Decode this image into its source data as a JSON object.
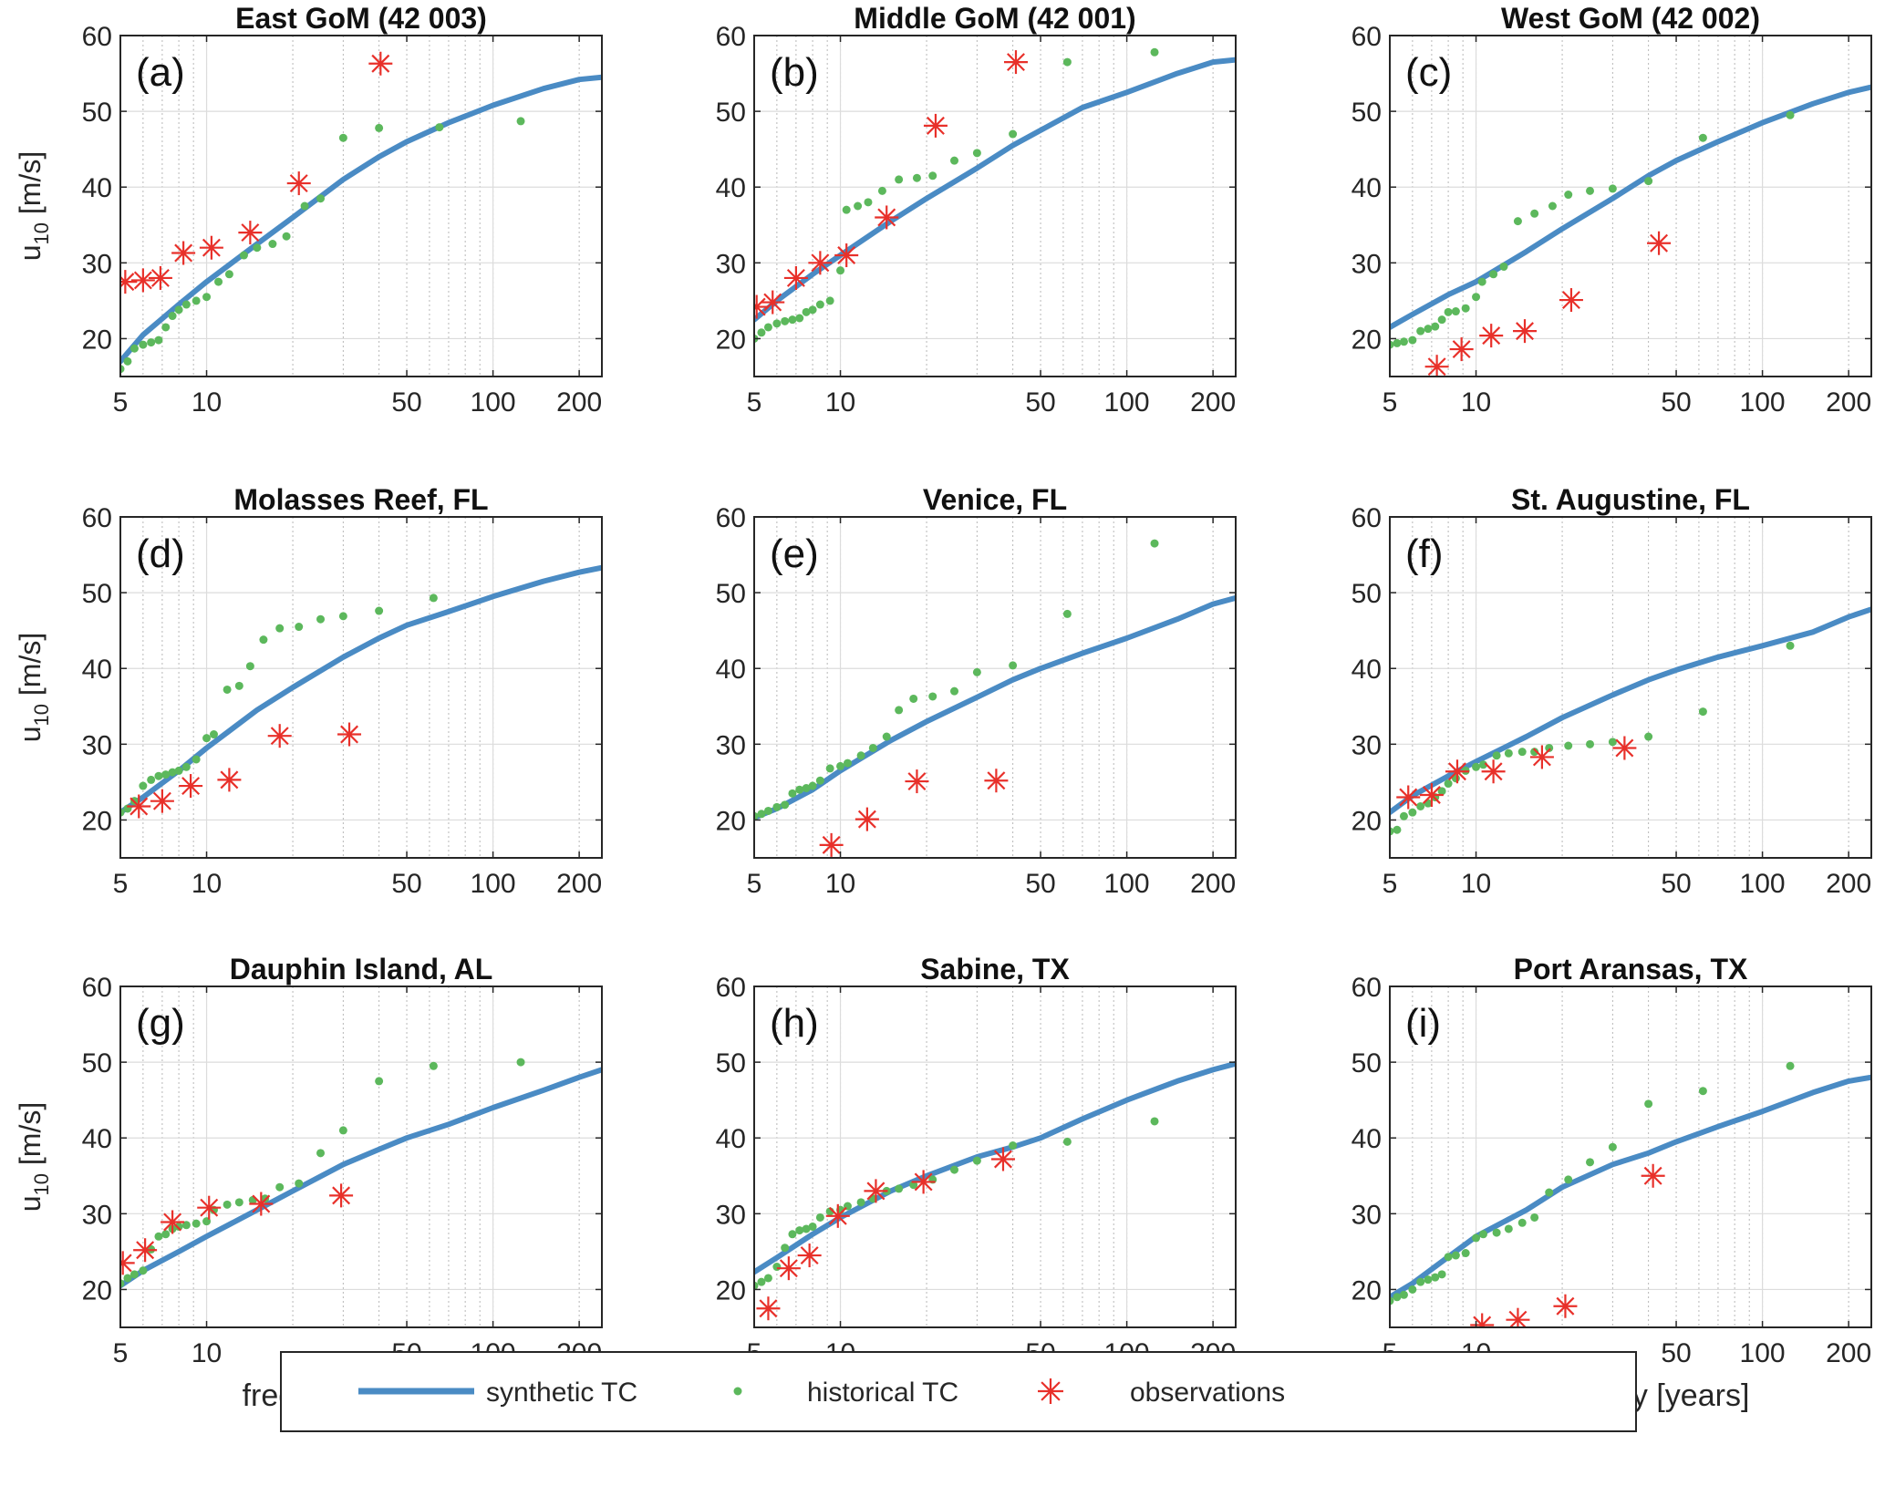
{
  "legend": {
    "placement": "bottom-center",
    "items": [
      {
        "label": "synthetic TC",
        "marker": "line"
      },
      {
        "label": "historical TC",
        "marker": "dot"
      },
      {
        "label": "observations",
        "marker": "asterisk"
      }
    ]
  },
  "colors": {
    "synthetic": "#4a8bc4",
    "historical": "#5cb85c",
    "observations": "#e8302a",
    "grid": "#dcdcdc",
    "minor_grid": "#b8b8b8",
    "axes": "#262626"
  },
  "y_axis_label": {
    "main": "u",
    "sub": "10",
    "unit": " [m/s]"
  },
  "x_axis_label": "frequency [years]",
  "chart_data": [
    {
      "type": "line",
      "title": "East GoM (42 003)",
      "panel_label": "(a)",
      "xscale": "log",
      "xlim": [
        5,
        240
      ],
      "ylim": [
        15,
        60
      ],
      "xticks": [
        5,
        10,
        50,
        100,
        200
      ],
      "yticks": [
        20,
        30,
        40,
        50,
        60
      ],
      "grid": true,
      "synthetic": {
        "x": [
          5,
          6,
          8,
          10,
          15,
          20,
          30,
          40,
          50,
          70,
          100,
          150,
          200,
          240
        ],
        "y": [
          17,
          20.5,
          24.5,
          27.5,
          32.5,
          36,
          41,
          44,
          46,
          48.5,
          50.8,
          53,
          54.2,
          54.5
        ]
      },
      "historical": {
        "x": [
          5,
          5.3,
          5.6,
          6,
          6.4,
          6.8,
          7.2,
          7.6,
          8,
          8.5,
          9.2,
          10,
          11,
          12,
          13.5,
          15,
          17,
          19,
          22,
          25,
          30,
          40,
          65,
          125
        ],
        "y": [
          16,
          17,
          18.7,
          19.2,
          19.5,
          19.8,
          21.5,
          23,
          23.8,
          24.5,
          25,
          25.5,
          27.5,
          28.5,
          31,
          32,
          32.5,
          33.5,
          37.5,
          38.5,
          46.5,
          47.8,
          47.9,
          48.7
        ]
      },
      "observations": {
        "x": [
          5.2,
          6,
          6.9,
          8.3,
          10.4,
          14.2,
          21,
          40.5
        ],
        "y": [
          27.5,
          27.7,
          28,
          31.3,
          32,
          34,
          40.5,
          56.3
        ]
      }
    },
    {
      "type": "line",
      "title": "Middle GoM (42 001)",
      "panel_label": "(b)",
      "xscale": "log",
      "xlim": [
        5,
        240
      ],
      "ylim": [
        15,
        60
      ],
      "xticks": [
        5,
        10,
        50,
        100,
        200
      ],
      "yticks": [
        20,
        30,
        40,
        50,
        60
      ],
      "grid": true,
      "synthetic": {
        "x": [
          5,
          6,
          8,
          10,
          15,
          20,
          30,
          40,
          50,
          70,
          100,
          150,
          200,
          240
        ],
        "y": [
          22.5,
          25,
          28.5,
          31,
          35.5,
          38.5,
          42.5,
          45.5,
          47.5,
          50.5,
          52.5,
          55,
          56.5,
          56.8
        ]
      },
      "historical": {
        "x": [
          5,
          5.3,
          5.6,
          6,
          6.4,
          6.8,
          7.2,
          7.6,
          8,
          8.5,
          9.2,
          10,
          10.5,
          11.5,
          12.5,
          14,
          16,
          18.5,
          21,
          25,
          30,
          40,
          62,
          125
        ],
        "y": [
          20,
          20.8,
          21.5,
          22,
          22.3,
          22.5,
          22.7,
          23.5,
          23.8,
          24.5,
          25,
          29,
          37,
          37.5,
          38,
          39.5,
          41,
          41.2,
          41.5,
          43.5,
          44.5,
          47,
          56.5,
          57.8
        ]
      },
      "observations": {
        "x": [
          5.1,
          5.8,
          7,
          8.5,
          10.5,
          14.5,
          21.5,
          41
        ],
        "y": [
          24.2,
          24.8,
          28,
          30,
          31,
          36,
          48.1,
          56.5
        ]
      }
    },
    {
      "type": "line",
      "title": "West GoM (42 002)",
      "panel_label": "(c)",
      "xscale": "log",
      "xlim": [
        5,
        240
      ],
      "ylim": [
        15,
        60
      ],
      "xticks": [
        5,
        10,
        50,
        100,
        200
      ],
      "yticks": [
        20,
        30,
        40,
        50,
        60
      ],
      "grid": true,
      "synthetic": {
        "x": [
          5,
          6,
          8,
          10,
          15,
          20,
          30,
          40,
          50,
          70,
          100,
          150,
          200,
          240
        ],
        "y": [
          21.5,
          23.2,
          25.8,
          27.5,
          31.5,
          34.5,
          38.5,
          41.5,
          43.5,
          46,
          48.5,
          51,
          52.5,
          53.2
        ]
      },
      "historical": {
        "x": [
          5,
          5.3,
          5.6,
          6,
          6.4,
          6.8,
          7.2,
          7.6,
          8,
          8.5,
          9.2,
          10,
          10.5,
          11.5,
          12.5,
          14,
          16,
          18.5,
          21,
          25,
          30,
          40,
          62,
          125
        ],
        "y": [
          19.2,
          19.4,
          19.6,
          19.8,
          21,
          21.3,
          21.6,
          22.5,
          23.5,
          23.6,
          24,
          25.5,
          27.5,
          28.5,
          29.5,
          35.5,
          36.5,
          37.5,
          39,
          39.5,
          39.8,
          40.8,
          46.5,
          49.5
        ]
      },
      "observations": {
        "x": [
          7.3,
          8.9,
          11.3,
          14.8,
          21.5,
          43.5
        ],
        "y": [
          16.3,
          18.6,
          20.4,
          21,
          25.1,
          32.6
        ]
      }
    },
    {
      "type": "line",
      "title": "Molasses Reef, FL",
      "panel_label": "(d)",
      "xscale": "log",
      "xlim": [
        5,
        240
      ],
      "ylim": [
        15,
        60
      ],
      "xticks": [
        5,
        10,
        50,
        100,
        200
      ],
      "yticks": [
        20,
        30,
        40,
        50,
        60
      ],
      "grid": true,
      "synthetic": {
        "x": [
          5,
          6,
          8,
          10,
          15,
          20,
          30,
          40,
          50,
          70,
          100,
          150,
          200,
          240
        ],
        "y": [
          21,
          23,
          26.5,
          29.5,
          34.5,
          37.5,
          41.5,
          44,
          45.7,
          47.5,
          49.5,
          51.5,
          52.7,
          53.3
        ]
      },
      "historical": {
        "x": [
          5,
          5.3,
          5.6,
          6,
          6.4,
          6.8,
          7.2,
          7.6,
          8,
          8.5,
          9.2,
          10,
          10.6,
          11.8,
          13,
          14.2,
          15.8,
          18,
          21,
          25,
          30,
          40,
          62
        ],
        "y": [
          21,
          21.5,
          22.5,
          24.5,
          25.3,
          25.8,
          26,
          26.3,
          26.5,
          27,
          28,
          30.8,
          31.3,
          37.2,
          37.7,
          40.3,
          43.8,
          45.3,
          45.5,
          46.5,
          46.9,
          47.6,
          49.3
        ]
      },
      "observations": {
        "x": [
          5.8,
          7,
          8.8,
          12,
          18,
          31.5
        ],
        "y": [
          21.8,
          22.5,
          24.5,
          25.3,
          31.1,
          31.3
        ]
      }
    },
    {
      "type": "line",
      "title": "Venice, FL",
      "panel_label": "(e)",
      "xscale": "log",
      "xlim": [
        5,
        240
      ],
      "ylim": [
        15,
        60
      ],
      "xticks": [
        5,
        10,
        50,
        100,
        200
      ],
      "yticks": [
        20,
        30,
        40,
        50,
        60
      ],
      "grid": true,
      "synthetic": {
        "x": [
          5,
          6,
          8,
          10,
          15,
          20,
          30,
          40,
          50,
          70,
          100,
          150,
          200,
          240
        ],
        "y": [
          20.3,
          21.5,
          24,
          26.5,
          30.5,
          33,
          36.2,
          38.5,
          40,
          42,
          44,
          46.5,
          48.5,
          49.3
        ]
      },
      "historical": {
        "x": [
          5,
          5.3,
          5.6,
          6,
          6.4,
          6.8,
          7.2,
          7.6,
          8,
          8.5,
          9.2,
          10,
          10.6,
          11.8,
          13,
          14.5,
          16,
          18,
          21,
          25,
          30,
          40,
          62,
          125
        ],
        "y": [
          20.5,
          20.8,
          21.2,
          21.7,
          22,
          23.5,
          24,
          24.2,
          24.5,
          25.2,
          26.8,
          27.1,
          27.5,
          28.5,
          29.5,
          31,
          34.5,
          36,
          36.3,
          37,
          39.5,
          40.4,
          47.2,
          56.5
        ]
      },
      "observations": {
        "x": [
          9.3,
          12.4,
          18.5,
          35
        ],
        "y": [
          16.7,
          20.1,
          25.1,
          25.2
        ]
      }
    },
    {
      "type": "line",
      "title": "St. Augustine, FL",
      "panel_label": "(f)",
      "xscale": "log",
      "xlim": [
        5,
        240
      ],
      "ylim": [
        15,
        60
      ],
      "xticks": [
        5,
        10,
        50,
        100,
        200
      ],
      "yticks": [
        20,
        30,
        40,
        50,
        60
      ],
      "grid": true,
      "synthetic": {
        "x": [
          5,
          6,
          8,
          10,
          15,
          20,
          30,
          40,
          50,
          70,
          100,
          150,
          200,
          240
        ],
        "y": [
          21,
          23.2,
          25.8,
          27.7,
          31,
          33.5,
          36.5,
          38.5,
          39.8,
          41.5,
          43,
          44.8,
          46.8,
          47.8
        ]
      },
      "historical": {
        "x": [
          5,
          5.3,
          5.6,
          6,
          6.4,
          6.8,
          7.2,
          7.6,
          8,
          8.5,
          9.2,
          10,
          10.6,
          11.8,
          13,
          14.5,
          16,
          18,
          21,
          25,
          30,
          40,
          62,
          125
        ],
        "y": [
          18.5,
          18.7,
          20.5,
          21,
          21.8,
          22.2,
          23,
          23.8,
          24.8,
          25.5,
          26.5,
          27,
          27.3,
          28.5,
          28.8,
          29,
          29,
          29.5,
          29.8,
          30,
          30.3,
          31,
          34.3,
          43
        ]
      },
      "observations": {
        "x": [
          5.8,
          7,
          8.6,
          11.5,
          17,
          33
        ],
        "y": [
          23,
          23.3,
          26.4,
          26.4,
          28.3,
          29.5
        ]
      }
    },
    {
      "type": "line",
      "title": "Dauphin Island, AL",
      "panel_label": "(g)",
      "xscale": "log",
      "xlim": [
        5,
        240
      ],
      "ylim": [
        15,
        60
      ],
      "xticks": [
        5,
        10,
        50,
        100,
        200
      ],
      "yticks": [
        20,
        30,
        40,
        50,
        60
      ],
      "grid": true,
      "synthetic": {
        "x": [
          5,
          6,
          8,
          10,
          15,
          20,
          30,
          40,
          50,
          70,
          100,
          150,
          200,
          240
        ],
        "y": [
          20.5,
          22.5,
          25,
          27,
          30.5,
          33,
          36.5,
          38.5,
          40,
          41.8,
          44,
          46.3,
          48,
          49
        ]
      },
      "historical": {
        "x": [
          5,
          5.3,
          5.6,
          6,
          6.4,
          6.8,
          7.2,
          7.6,
          8,
          8.5,
          9.2,
          10,
          10.6,
          11.8,
          13,
          14.5,
          16,
          18,
          21,
          25,
          30,
          40,
          62,
          125
        ],
        "y": [
          20.8,
          21.5,
          22,
          22.5,
          25.3,
          27,
          27.3,
          28,
          28.3,
          28.5,
          28.7,
          29,
          30.5,
          31.2,
          31.5,
          31.8,
          32,
          33.5,
          34,
          38,
          41,
          47.5,
          49.5,
          50
        ]
      },
      "observations": {
        "x": [
          5.1,
          6.1,
          7.6,
          10.2,
          15.5,
          29.5
        ],
        "y": [
          23.5,
          25.2,
          28.9,
          30.8,
          31.3,
          32.4
        ]
      }
    },
    {
      "type": "line",
      "title": "Sabine, TX",
      "panel_label": "(h)",
      "xscale": "log",
      "xlim": [
        5,
        240
      ],
      "ylim": [
        15,
        60
      ],
      "xticks": [
        5,
        10,
        50,
        100,
        200
      ],
      "yticks": [
        20,
        30,
        40,
        50,
        60
      ],
      "grid": true,
      "synthetic": {
        "x": [
          5,
          6,
          8,
          10,
          15,
          20,
          30,
          40,
          50,
          70,
          100,
          150,
          200,
          240
        ],
        "y": [
          22.3,
          24.2,
          27.3,
          29.5,
          33,
          35,
          37.5,
          38.8,
          40,
          42.5,
          45,
          47.5,
          49,
          49.8
        ]
      },
      "historical": {
        "x": [
          5,
          5.3,
          5.6,
          6,
          6.4,
          6.8,
          7.2,
          7.6,
          8,
          8.5,
          9.2,
          10,
          10.6,
          11.8,
          13,
          14.5,
          16,
          18,
          21,
          25,
          30,
          40,
          62,
          125
        ],
        "y": [
          20.5,
          21,
          21.5,
          23,
          25.5,
          27.3,
          27.8,
          28,
          28.3,
          29.5,
          30.3,
          30.5,
          31,
          31.5,
          32,
          33,
          33.3,
          33.8,
          34.5,
          35.8,
          37,
          39,
          39.5,
          42.2
        ]
      },
      "observations": {
        "x": [
          5.6,
          6.6,
          7.8,
          9.8,
          13.3,
          19.5,
          37
        ],
        "y": [
          17.5,
          22.8,
          24.5,
          29.7,
          33,
          34.2,
          37.2
        ]
      }
    },
    {
      "type": "line",
      "title": "Port Aransas, TX",
      "panel_label": "(i)",
      "xscale": "log",
      "xlim": [
        5,
        240
      ],
      "ylim": [
        15,
        60
      ],
      "xticks": [
        5,
        10,
        50,
        100,
        200
      ],
      "yticks": [
        20,
        30,
        40,
        50,
        60
      ],
      "grid": true,
      "synthetic": {
        "x": [
          5,
          6,
          8,
          10,
          15,
          20,
          30,
          40,
          50,
          70,
          100,
          150,
          200,
          240
        ],
        "y": [
          19,
          20.8,
          24.3,
          27,
          30.5,
          33.5,
          36.5,
          38,
          39.5,
          41.5,
          43.5,
          46,
          47.5,
          48
        ]
      },
      "historical": {
        "x": [
          5,
          5.3,
          5.6,
          6,
          6.4,
          6.8,
          7.2,
          7.6,
          8,
          8.5,
          9.2,
          10,
          10.6,
          11.8,
          13,
          14.5,
          16,
          18,
          21,
          25,
          30,
          40,
          62,
          125
        ],
        "y": [
          18.5,
          19,
          19.3,
          20,
          21,
          21.3,
          21.6,
          22,
          24.3,
          24.5,
          24.8,
          26.8,
          27.3,
          27.5,
          28,
          28.8,
          29.5,
          32.8,
          34.5,
          36.8,
          38.8,
          44.5,
          46.2,
          49.5
        ]
      },
      "observations": {
        "x": [
          10.5,
          14,
          20.5,
          41.5
        ],
        "y": [
          15.3,
          16,
          17.8,
          35
        ]
      }
    }
  ]
}
